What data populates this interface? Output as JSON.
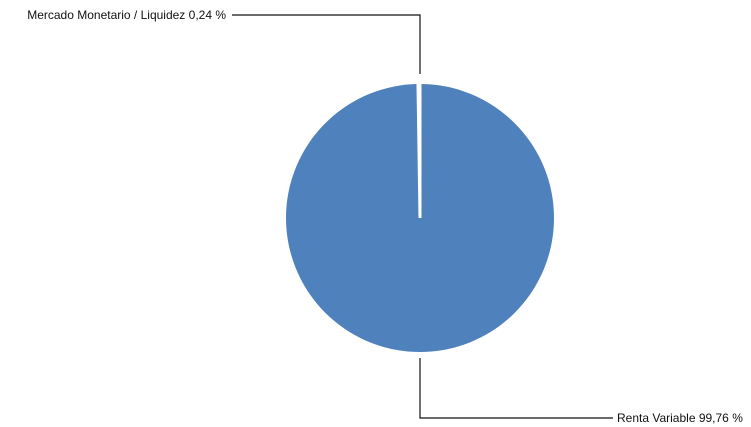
{
  "chart_data": {
    "type": "pie",
    "unit": "%",
    "slices": [
      {
        "label": "Mercado Monetario / Liquidez 0,24 %",
        "name": "Mercado Monetario / Liquidez",
        "value": 0.24
      },
      {
        "label": "Renta Variable 99,76 %",
        "name": "Renta Variable",
        "value": 99.76
      }
    ],
    "colors": {
      "slice": "#4f81bd",
      "separator": "#ffffff",
      "leader": "#111111"
    },
    "legend": "none",
    "start_angle": "top",
    "direction": "counterclockwise"
  }
}
